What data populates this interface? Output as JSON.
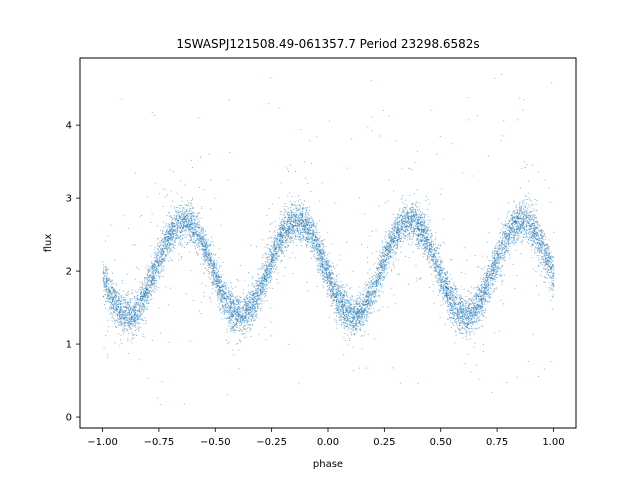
{
  "chart_data": {
    "type": "scatter",
    "title": "1SWASPJ121508.49-061357.7 Period 23298.6582s",
    "xlabel": "phase",
    "ylabel": "flux",
    "xlim": [
      -1.1,
      1.1
    ],
    "ylim": [
      -0.15,
      4.92
    ],
    "x_ticks": [
      -1.0,
      -0.75,
      -0.5,
      -0.25,
      0.0,
      0.25,
      0.5,
      0.75,
      1.0
    ],
    "x_tick_labels": [
      "−1.00",
      "−0.75",
      "−0.50",
      "−0.25",
      "0.00",
      "0.25",
      "0.50",
      "0.75",
      "1.00"
    ],
    "y_ticks": [
      0,
      1,
      2,
      3,
      4
    ],
    "y_tick_labels": [
      "0",
      "1",
      "2",
      "3",
      "4"
    ],
    "grid": false,
    "legend": "none",
    "marker_color": "#1f77b4",
    "light_curve": {
      "phase_range": [
        -1.0,
        1.0
      ],
      "cycles_per_phase_unit": 2,
      "minimum_phases": [
        -0.89,
        -0.39,
        0.11,
        0.61
      ],
      "maximum_phases": [
        -0.64,
        -0.14,
        0.36,
        0.86
      ],
      "minimum_flux": 1.4,
      "maximum_flux": 2.7,
      "scatter_sigma": 0.13,
      "outlier_range": [
        0.1,
        4.7
      ]
    },
    "series": [
      {
        "values": "dense phase-folded photometry, ~40000 points"
      }
    ]
  }
}
